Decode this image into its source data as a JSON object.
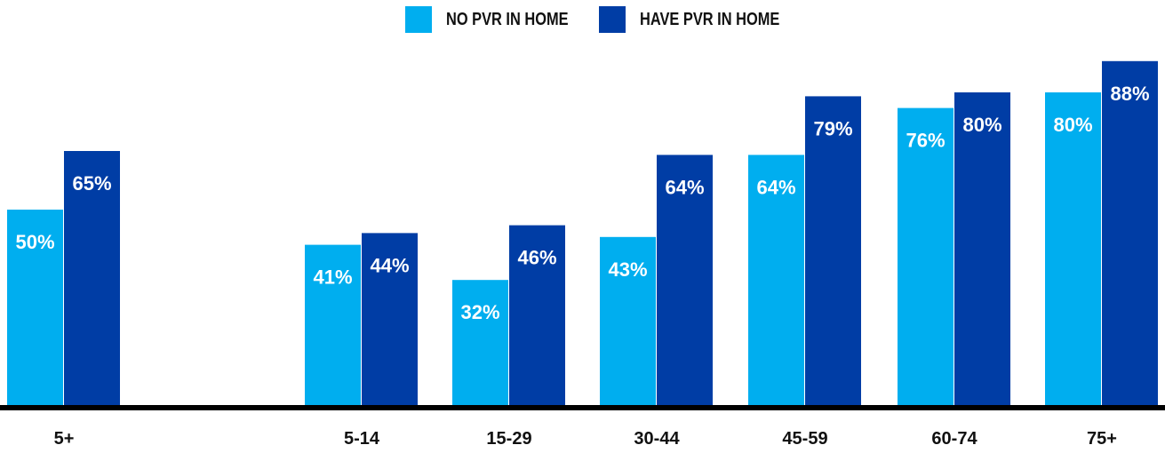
{
  "legend": {
    "no_pvr_label": "NO PVR IN HOME",
    "have_pvr_label": "HAVE PVR IN HOME"
  },
  "colors": {
    "no_pvr": "#00AEEF",
    "have_pvr": "#003DA5",
    "baseline": "#000000",
    "label_text": "#ffffff",
    "axis_text": "#111111"
  },
  "chart_data": {
    "type": "bar",
    "categories": [
      "5+",
      "5-14",
      "15-29",
      "30-44",
      "45-59",
      "60-74",
      "75+"
    ],
    "series": [
      {
        "name": "NO PVR IN HOME",
        "values": [
          50,
          41,
          32,
          43,
          64,
          76,
          80
        ],
        "labels": [
          "50%",
          "41%",
          "32%",
          "43%",
          "64%",
          "76%",
          "80%"
        ]
      },
      {
        "name": "HAVE PVR IN HOME",
        "values": [
          65,
          44,
          46,
          64,
          79,
          80,
          88
        ],
        "labels": [
          "65%",
          "44%",
          "46%",
          "64%",
          "79%",
          "80%",
          "88%"
        ]
      }
    ],
    "ylim": [
      0,
      100
    ],
    "legend_position": "top-center",
    "grid": false
  }
}
